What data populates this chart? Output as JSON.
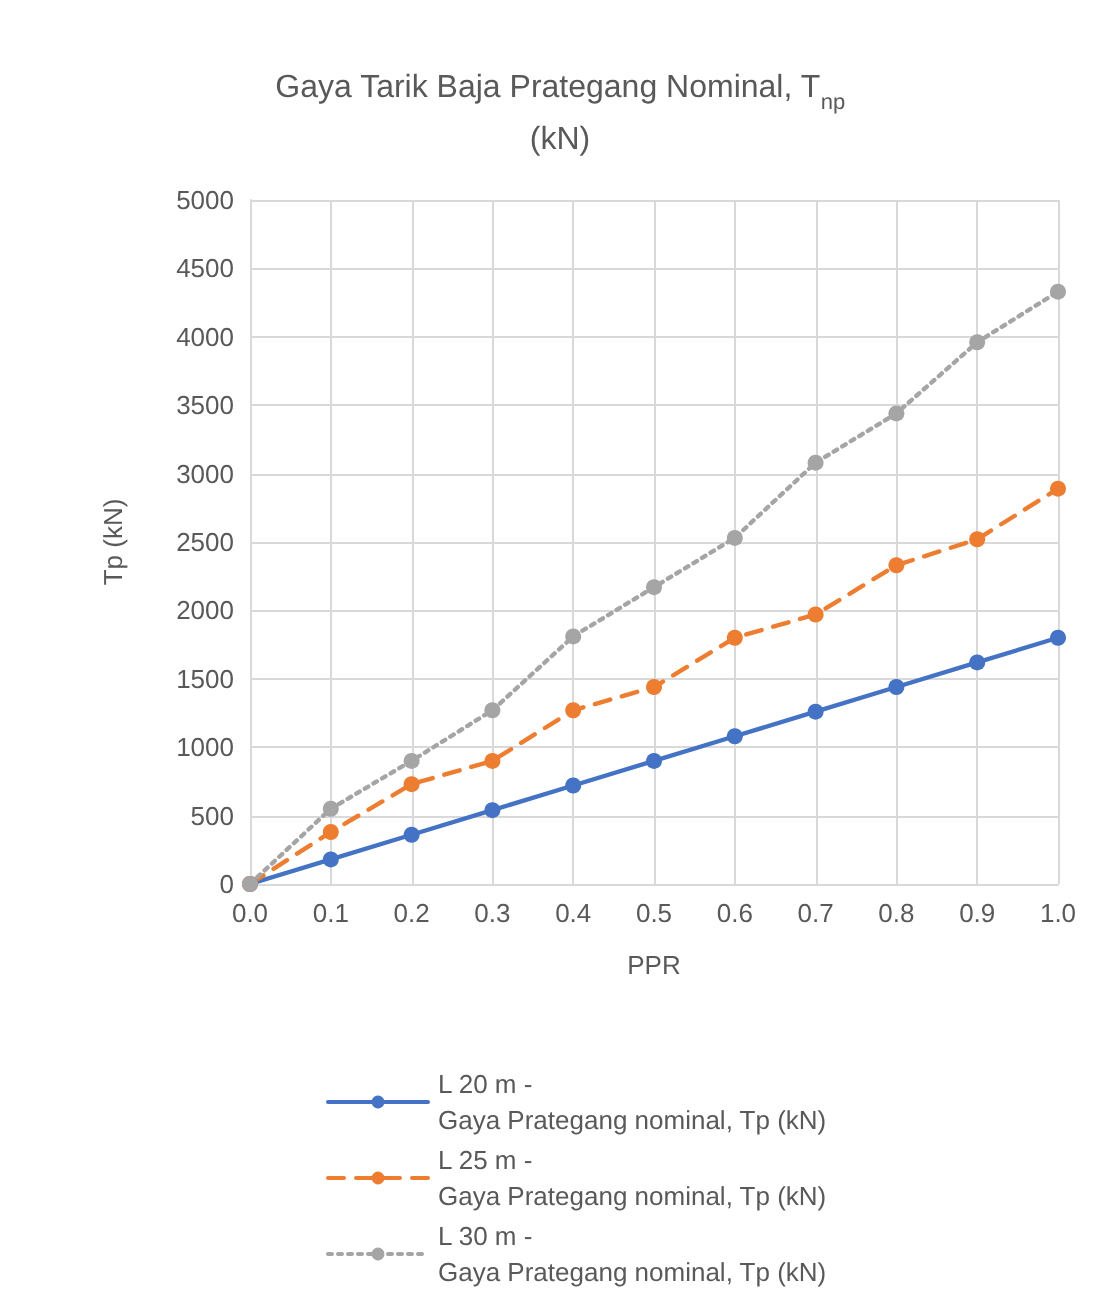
{
  "chart_data": {
    "type": "line",
    "title": "Gaya Tarik Baja Prategang Nominal, T$_{np}$\n(kN)",
    "xlabel": "PPR",
    "ylabel": "Tp (kN)",
    "x": [
      0,
      0.1,
      0.2,
      0.3,
      0.4,
      0.5,
      0.6,
      0.7,
      0.8,
      0.9,
      1.0
    ],
    "series": [
      {
        "name": "L 20 m - Gaya Prategang nominal, Tp (kN)",
        "color": "#4472c4",
        "line_style": "solid",
        "values": [
          0,
          180,
          360,
          540,
          720,
          900,
          1080,
          1260,
          1440,
          1620,
          1800
        ]
      },
      {
        "name": "L 25 m - Gaya Prategang nominal, Tp (kN)",
        "color": "#ed7d31",
        "line_style": "dashed",
        "values": [
          0,
          380,
          730,
          900,
          1270,
          1440,
          1800,
          1970,
          2330,
          2520,
          2890
        ]
      },
      {
        "name": "L 30 m - Gaya Prategang nominal, Tp (kN)",
        "color": "#a5a5a5",
        "line_style": "dotted",
        "values": [
          0,
          550,
          900,
          1270,
          1810,
          2170,
          2530,
          3080,
          3440,
          3960,
          4330
        ]
      }
    ],
    "xlim": [
      0,
      1
    ],
    "xticks": [
      {
        "value": 0,
        "label": "0.0"
      },
      {
        "value": 0.1,
        "label": "0.1"
      },
      {
        "value": 0.2,
        "label": "0.2"
      },
      {
        "value": 0.3,
        "label": "0.3"
      },
      {
        "value": 0.4,
        "label": "0.4"
      },
      {
        "value": 0.5,
        "label": "0.5"
      },
      {
        "value": 0.6,
        "label": "0.6"
      },
      {
        "value": 0.7,
        "label": "0.7"
      },
      {
        "value": 0.8,
        "label": "0.8"
      },
      {
        "value": 0.9,
        "label": "0.9"
      },
      {
        "value": 1,
        "label": "1.0"
      }
    ],
    "ylim": [
      0,
      5000
    ],
    "yticks": [
      0,
      500,
      1000,
      1500,
      2000,
      2500,
      3000,
      3500,
      4000,
      4500,
      5000
    ],
    "grid": true,
    "legend": "bottom",
    "marker": "circle"
  }
}
